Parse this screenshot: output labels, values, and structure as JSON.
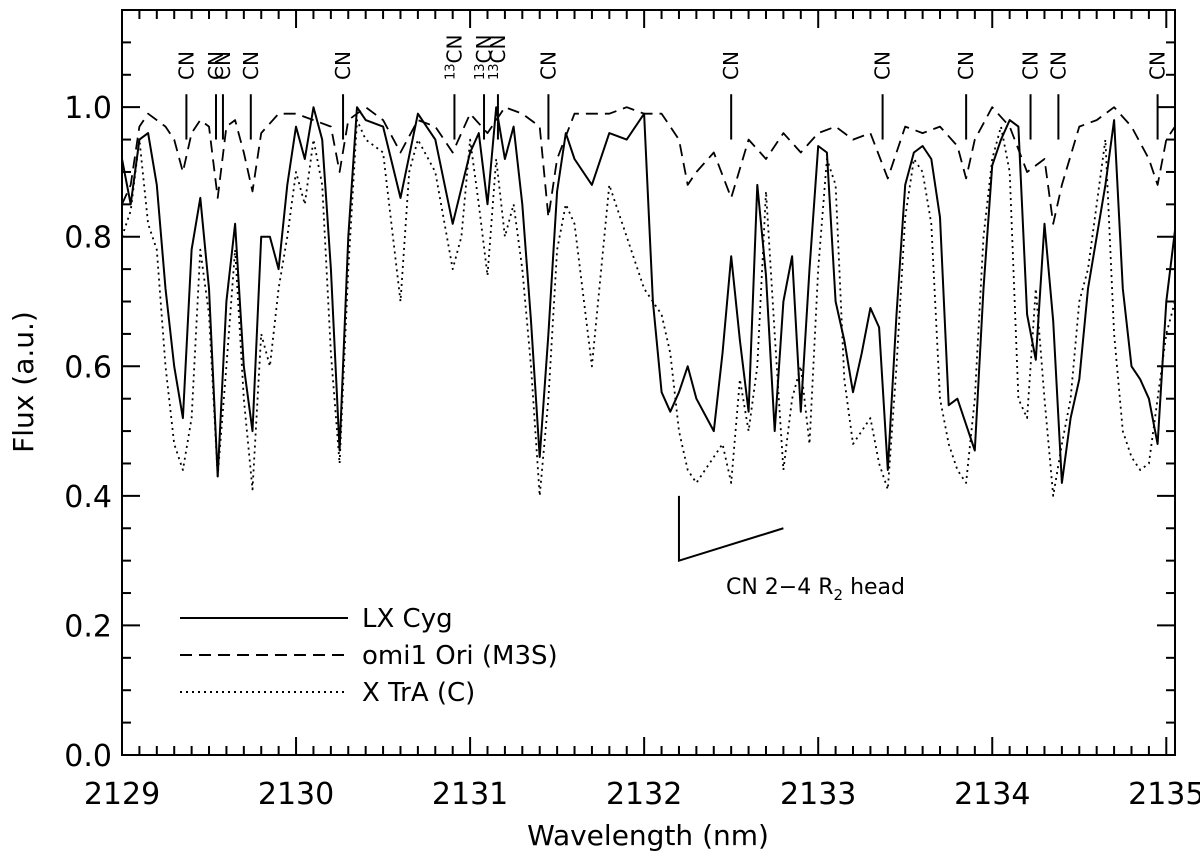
{
  "chart_data": {
    "type": "line",
    "xlabel": "Wavelength (nm)",
    "ylabel": "Flux (a.u.)",
    "xlim": [
      2129.0,
      2135.05
    ],
    "ylim": [
      0.0,
      1.15
    ],
    "xticks": [
      "2129",
      "2130",
      "2131",
      "2132",
      "2133",
      "2134",
      "2135"
    ],
    "yticks": [
      "0.0",
      "0.2",
      "0.4",
      "0.6",
      "0.8",
      "1.0"
    ],
    "x_tick_values": [
      2129,
      2130,
      2131,
      2132,
      2133,
      2134,
      2135
    ],
    "y_tick_values": [
      0.0,
      0.2,
      0.4,
      0.6,
      0.8,
      1.0
    ],
    "legend_position": "bottom-left",
    "series": [
      {
        "name": "LX Cyg",
        "style": "solid",
        "x": [
          2129.0,
          2129.05,
          2129.1,
          2129.15,
          2129.2,
          2129.25,
          2129.3,
          2129.35,
          2129.4,
          2129.45,
          2129.5,
          2129.55,
          2129.6,
          2129.65,
          2129.7,
          2129.75,
          2129.8,
          2129.85,
          2129.9,
          2129.95,
          2130.0,
          2130.05,
          2130.1,
          2130.15,
          2130.2,
          2130.25,
          2130.3,
          2130.35,
          2130.4,
          2130.5,
          2130.6,
          2130.7,
          2130.8,
          2130.9,
          2131.0,
          2131.05,
          2131.1,
          2131.15,
          2131.2,
          2131.25,
          2131.3,
          2131.35,
          2131.4,
          2131.45,
          2131.5,
          2131.55,
          2131.6,
          2131.7,
          2131.8,
          2131.9,
          2132.0,
          2132.05,
          2132.1,
          2132.15,
          2132.2,
          2132.25,
          2132.3,
          2132.4,
          2132.45,
          2132.5,
          2132.55,
          2132.6,
          2132.65,
          2132.7,
          2132.75,
          2132.8,
          2132.85,
          2132.9,
          2132.95,
          2133.0,
          2133.05,
          2133.1,
          2133.15,
          2133.2,
          2133.25,
          2133.3,
          2133.35,
          2133.4,
          2133.45,
          2133.5,
          2133.55,
          2133.6,
          2133.65,
          2133.7,
          2133.75,
          2133.8,
          2133.85,
          2133.9,
          2133.95,
          2134.0,
          2134.05,
          2134.1,
          2134.15,
          2134.2,
          2134.25,
          2134.3,
          2134.35,
          2134.4,
          2134.45,
          2134.5,
          2134.55,
          2134.6,
          2134.65,
          2134.7,
          2134.75,
          2134.8,
          2134.85,
          2134.9,
          2134.95,
          2135.0,
          2135.05
        ],
        "y": [
          0.92,
          0.85,
          0.95,
          0.96,
          0.88,
          0.72,
          0.6,
          0.52,
          0.78,
          0.86,
          0.72,
          0.43,
          0.7,
          0.82,
          0.6,
          0.5,
          0.8,
          0.8,
          0.75,
          0.88,
          0.97,
          0.92,
          1.0,
          0.95,
          0.75,
          0.47,
          0.8,
          1.0,
          0.98,
          0.97,
          0.86,
          0.99,
          0.95,
          0.82,
          0.93,
          0.96,
          0.85,
          1.0,
          0.92,
          0.97,
          0.85,
          0.67,
          0.46,
          0.65,
          0.87,
          0.96,
          0.92,
          0.88,
          0.96,
          0.95,
          0.99,
          0.7,
          0.56,
          0.53,
          0.56,
          0.6,
          0.55,
          0.5,
          0.62,
          0.77,
          0.64,
          0.53,
          0.88,
          0.74,
          0.5,
          0.7,
          0.77,
          0.53,
          0.75,
          0.94,
          0.93,
          0.7,
          0.64,
          0.56,
          0.62,
          0.69,
          0.66,
          0.44,
          0.68,
          0.88,
          0.93,
          0.94,
          0.92,
          0.83,
          0.54,
          0.55,
          0.51,
          0.47,
          0.72,
          0.91,
          0.95,
          0.98,
          0.97,
          0.68,
          0.61,
          0.82,
          0.67,
          0.42,
          0.52,
          0.58,
          0.72,
          0.8,
          0.88,
          0.98,
          0.72,
          0.6,
          0.58,
          0.55,
          0.48,
          0.7,
          0.81
        ]
      },
      {
        "name": "omi1 Ori (M3S)",
        "style": "dashed",
        "x": [
          2129.0,
          2129.05,
          2129.1,
          2129.15,
          2129.2,
          2129.25,
          2129.3,
          2129.35,
          2129.4,
          2129.45,
          2129.5,
          2129.55,
          2129.6,
          2129.65,
          2129.7,
          2129.75,
          2129.8,
          2129.9,
          2130.0,
          2130.1,
          2130.2,
          2130.25,
          2130.3,
          2130.4,
          2130.5,
          2130.6,
          2130.7,
          2130.8,
          2130.9,
          2131.0,
          2131.1,
          2131.2,
          2131.3,
          2131.4,
          2131.45,
          2131.5,
          2131.6,
          2131.7,
          2131.8,
          2131.9,
          2132.0,
          2132.1,
          2132.2,
          2132.25,
          2132.3,
          2132.4,
          2132.5,
          2132.6,
          2132.7,
          2132.8,
          2132.9,
          2133.0,
          2133.1,
          2133.2,
          2133.3,
          2133.4,
          2133.5,
          2133.6,
          2133.7,
          2133.8,
          2133.85,
          2133.9,
          2134.0,
          2134.1,
          2134.2,
          2134.3,
          2134.35,
          2134.4,
          2134.5,
          2134.6,
          2134.7,
          2134.8,
          2134.9,
          2134.95,
          2135.0,
          2135.05
        ],
        "y": [
          0.85,
          0.88,
          0.97,
          0.99,
          0.98,
          0.97,
          0.95,
          0.9,
          0.96,
          0.98,
          0.97,
          0.86,
          0.97,
          0.98,
          0.93,
          0.87,
          0.96,
          0.99,
          0.99,
          0.98,
          0.97,
          0.9,
          0.98,
          1.0,
          0.98,
          0.93,
          0.98,
          0.97,
          0.93,
          0.99,
          0.96,
          1.0,
          0.99,
          0.97,
          0.83,
          0.92,
          0.99,
          0.99,
          0.99,
          1.0,
          0.99,
          0.99,
          0.95,
          0.88,
          0.9,
          0.93,
          0.86,
          0.95,
          0.92,
          0.96,
          0.93,
          0.96,
          0.97,
          0.95,
          0.96,
          0.89,
          0.97,
          0.96,
          0.97,
          0.94,
          0.89,
          0.95,
          1.0,
          0.97,
          0.9,
          0.92,
          0.82,
          0.88,
          0.97,
          0.98,
          1.0,
          0.97,
          0.92,
          0.88,
          0.95,
          0.97
        ]
      },
      {
        "name": "X TrA (C)",
        "style": "dotted",
        "x": [
          2129.0,
          2129.05,
          2129.1,
          2129.15,
          2129.2,
          2129.25,
          2129.3,
          2129.35,
          2129.4,
          2129.45,
          2129.5,
          2129.55,
          2129.6,
          2129.65,
          2129.7,
          2129.75,
          2129.8,
          2129.85,
          2129.9,
          2129.95,
          2130.0,
          2130.05,
          2130.1,
          2130.15,
          2130.2,
          2130.25,
          2130.3,
          2130.35,
          2130.4,
          2130.5,
          2130.6,
          2130.65,
          2130.7,
          2130.8,
          2130.9,
          2130.95,
          2131.0,
          2131.05,
          2131.1,
          2131.15,
          2131.2,
          2131.25,
          2131.3,
          2131.35,
          2131.4,
          2131.45,
          2131.5,
          2131.55,
          2131.6,
          2131.7,
          2131.8,
          2131.9,
          2132.0,
          2132.1,
          2132.15,
          2132.2,
          2132.25,
          2132.3,
          2132.4,
          2132.45,
          2132.5,
          2132.55,
          2132.6,
          2132.65,
          2132.7,
          2132.75,
          2132.8,
          2132.85,
          2132.9,
          2132.95,
          2133.0,
          2133.05,
          2133.1,
          2133.15,
          2133.2,
          2133.25,
          2133.3,
          2133.35,
          2133.4,
          2133.45,
          2133.5,
          2133.55,
          2133.6,
          2133.65,
          2133.7,
          2133.75,
          2133.8,
          2133.85,
          2133.9,
          2133.95,
          2134.0,
          2134.05,
          2134.1,
          2134.15,
          2134.2,
          2134.25,
          2134.3,
          2134.35,
          2134.4,
          2134.45,
          2134.5,
          2134.55,
          2134.6,
          2134.65,
          2134.7,
          2134.75,
          2134.8,
          2134.85,
          2134.9,
          2134.95,
          2135.0,
          2135.05
        ],
        "y": [
          0.8,
          0.84,
          0.95,
          0.82,
          0.78,
          0.6,
          0.48,
          0.44,
          0.52,
          0.78,
          0.68,
          0.43,
          0.6,
          0.78,
          0.55,
          0.41,
          0.65,
          0.6,
          0.72,
          0.8,
          0.9,
          0.85,
          0.95,
          0.88,
          0.62,
          0.45,
          0.75,
          0.98,
          0.95,
          0.93,
          0.7,
          0.9,
          0.95,
          0.9,
          0.75,
          0.8,
          0.95,
          0.85,
          0.74,
          0.92,
          0.8,
          0.85,
          0.75,
          0.6,
          0.4,
          0.55,
          0.78,
          0.85,
          0.82,
          0.6,
          0.88,
          0.8,
          0.72,
          0.68,
          0.62,
          0.5,
          0.44,
          0.42,
          0.46,
          0.48,
          0.42,
          0.58,
          0.5,
          0.6,
          0.87,
          0.65,
          0.44,
          0.55,
          0.6,
          0.48,
          0.75,
          0.92,
          0.88,
          0.58,
          0.48,
          0.5,
          0.52,
          0.45,
          0.41,
          0.6,
          0.83,
          0.92,
          0.9,
          0.82,
          0.55,
          0.48,
          0.44,
          0.42,
          0.55,
          0.8,
          0.92,
          0.97,
          0.9,
          0.55,
          0.52,
          0.72,
          0.55,
          0.4,
          0.48,
          0.55,
          0.7,
          0.75,
          0.85,
          0.95,
          0.65,
          0.5,
          0.46,
          0.44,
          0.45,
          0.55,
          0.65,
          0.7
        ]
      }
    ],
    "line_markers": [
      {
        "label": "CN",
        "x": 2129.37,
        "y_top": 1.02,
        "y_bottom": 0.95
      },
      {
        "label": "CN",
        "x": 2129.54,
        "y_top": 1.02,
        "y_bottom": 0.95
      },
      {
        "label": "CN",
        "x": 2129.58,
        "y_top": 1.02,
        "y_bottom": 0.95
      },
      {
        "label": "CN",
        "x": 2129.74,
        "y_top": 1.02,
        "y_bottom": 0.95
      },
      {
        "label": "CN",
        "x": 2130.27,
        "y_top": 1.02,
        "y_bottom": 0.95
      },
      {
        "label": "13CN",
        "x": 2130.91,
        "y_top": 1.02,
        "y_bottom": 0.95
      },
      {
        "label": "13CN",
        "x": 2131.08,
        "y_top": 1.02,
        "y_bottom": 0.95
      },
      {
        "label": "13CN",
        "x": 2131.16,
        "y_top": 1.02,
        "y_bottom": 0.95
      },
      {
        "label": "CN",
        "x": 2131.45,
        "y_top": 1.02,
        "y_bottom": 0.95
      },
      {
        "label": "CN",
        "x": 2132.5,
        "y_top": 1.02,
        "y_bottom": 0.95
      },
      {
        "label": "CN",
        "x": 2133.37,
        "y_top": 1.02,
        "y_bottom": 0.95
      },
      {
        "label": "CN",
        "x": 2133.85,
        "y_top": 1.02,
        "y_bottom": 0.95
      },
      {
        "label": "CN",
        "x": 2134.22,
        "y_top": 1.02,
        "y_bottom": 0.95
      },
      {
        "label": "CN",
        "x": 2134.38,
        "y_top": 1.02,
        "y_bottom": 0.95
      },
      {
        "label": "CN",
        "x": 2134.95,
        "y_top": 1.02,
        "y_bottom": 0.95
      }
    ],
    "annotation": {
      "text_main": "CN 2−4 R",
      "text_sub": "2",
      "text_tail": " head",
      "bandhead_x": 2132.2,
      "bandhead_y_top": 0.4,
      "bandhead_y_bottom": 0.3,
      "slant_end_x": 2132.8,
      "slant_end_y": 0.35
    }
  }
}
